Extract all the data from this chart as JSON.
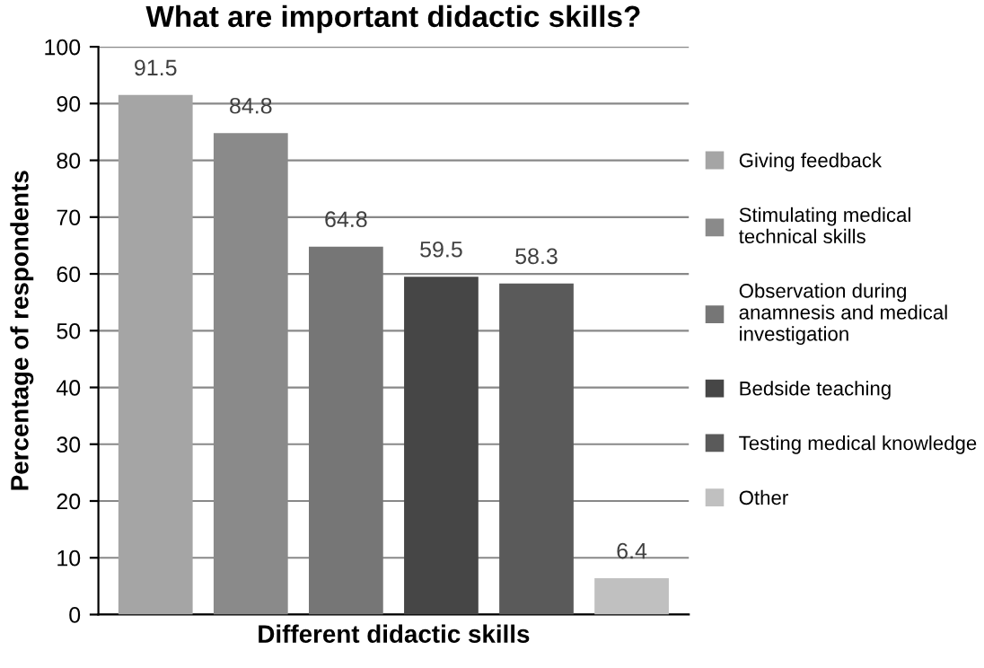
{
  "chart_data": {
    "type": "bar",
    "title": "What are important didactic skills?",
    "xlabel": "Different didactic skills",
    "ylabel": "Percentage of respondents",
    "categories": [
      null,
      null,
      null,
      null,
      null,
      null
    ],
    "series": [
      {
        "name": "Giving feedback",
        "color": "#a5a5a5",
        "values": [
          91.5,
          null,
          null,
          null,
          null,
          null
        ]
      },
      {
        "name": "Stimulating medical technical skills",
        "color": "#8a8a8a",
        "values": [
          null,
          84.8,
          null,
          null,
          null,
          null
        ]
      },
      {
        "name": "Observation during anamnesis and medical investigation",
        "color": "#767676",
        "values": [
          null,
          null,
          64.8,
          null,
          null,
          null
        ]
      },
      {
        "name": "Bedside teaching",
        "color": "#464646",
        "values": [
          null,
          null,
          null,
          59.5,
          null,
          null
        ]
      },
      {
        "name": "Testing medical knowledge",
        "color": "#5a5a5a",
        "values": [
          null,
          null,
          null,
          null,
          58.3,
          null
        ]
      },
      {
        "name": "Other",
        "color": "#c0c0c0",
        "values": [
          null,
          null,
          null,
          null,
          null,
          6.4
        ]
      }
    ],
    "ylim": [
      0,
      100
    ],
    "yticks": [
      0,
      10,
      20,
      30,
      40,
      50,
      60,
      70,
      80,
      90,
      100
    ],
    "grid": "y",
    "data_labels": true,
    "legend": "right",
    "tick_labels": "y"
  }
}
